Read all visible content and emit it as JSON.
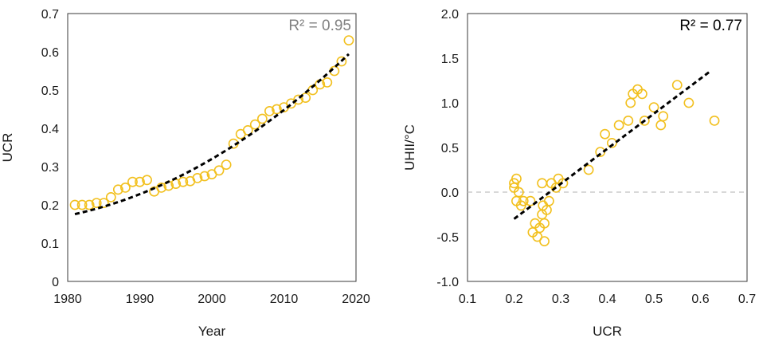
{
  "chart_data": [
    {
      "type": "scatter",
      "xlabel": "Year",
      "ylabel": "UCR",
      "xlim": [
        1980,
        2020
      ],
      "ylim": [
        0,
        0.7
      ],
      "xticks": [
        "1980",
        "1990",
        "2000",
        "2010",
        "2020"
      ],
      "yticks": [
        "0",
        "0.1",
        "0.2",
        "0.3",
        "0.4",
        "0.5",
        "0.6",
        "0.7"
      ],
      "annotation": "R² = 0.95",
      "annotation_color": "#808080",
      "marker_color": "#F2C01E",
      "trend_color": "#000000",
      "trendline": {
        "style": "dashed",
        "type": "polynomial",
        "coef": [
          0.172,
          0.0038,
          0.00018
        ],
        "x_origin": 1980,
        "x_range": [
          1981,
          2019
        ]
      },
      "series": [
        {
          "x": [
            1981,
            1982,
            1983,
            1984,
            1985,
            1986,
            1987,
            1988,
            1989,
            1990,
            1991,
            1992,
            1993,
            1994,
            1995,
            1996,
            1997,
            1998,
            1999,
            2000,
            2001,
            2002,
            2003,
            2004,
            2005,
            2006,
            2007,
            2008,
            2009,
            2010,
            2011,
            2012,
            2013,
            2014,
            2015,
            2016,
            2017,
            2018,
            2019
          ],
          "y": [
            0.2,
            0.2,
            0.2,
            0.205,
            0.205,
            0.22,
            0.24,
            0.245,
            0.26,
            0.26,
            0.265,
            0.235,
            0.245,
            0.25,
            0.255,
            0.26,
            0.262,
            0.27,
            0.275,
            0.28,
            0.29,
            0.305,
            0.36,
            0.385,
            0.395,
            0.41,
            0.425,
            0.445,
            0.45,
            0.455,
            0.465,
            0.475,
            0.48,
            0.5,
            0.515,
            0.52,
            0.55,
            0.575,
            0.63
          ]
        }
      ]
    },
    {
      "type": "scatter",
      "xlabel": "UCR",
      "ylabel": "UHII/°C",
      "xlim": [
        0.1,
        0.7
      ],
      "ylim": [
        -1.0,
        2.0
      ],
      "xticks": [
        "0.1",
        "0.2",
        "0.3",
        "0.4",
        "0.5",
        "0.6",
        "0.7"
      ],
      "yticks": [
        "-1.0",
        "-0.5",
        "0.0",
        "0.5",
        "1.0",
        "1.5",
        "2.0"
      ],
      "annotation": "R² = 0.77",
      "annotation_color": "#000000",
      "marker_color": "#F2C01E",
      "trend_color": "#000000",
      "zero_line_color": "#C0C0C0",
      "trendline": {
        "style": "dashed",
        "type": "linear",
        "start": [
          0.2,
          -0.3
        ],
        "end": [
          0.62,
          1.35
        ]
      },
      "series": [
        {
          "x": [
            0.2,
            0.2,
            0.205,
            0.205,
            0.21,
            0.215,
            0.22,
            0.235,
            0.24,
            0.245,
            0.25,
            0.255,
            0.26,
            0.26,
            0.262,
            0.265,
            0.265,
            0.27,
            0.275,
            0.28,
            0.29,
            0.295,
            0.305,
            0.36,
            0.385,
            0.395,
            0.41,
            0.425,
            0.445,
            0.45,
            0.455,
            0.465,
            0.475,
            0.48,
            0.5,
            0.515,
            0.52,
            0.55,
            0.575,
            0.63
          ],
          "y": [
            0.1,
            0.05,
            0.15,
            -0.1,
            0.0,
            -0.15,
            -0.1,
            -0.1,
            -0.45,
            -0.35,
            -0.5,
            -0.4,
            -0.25,
            0.1,
            -0.15,
            -0.55,
            -0.35,
            -0.2,
            -0.1,
            0.1,
            0.05,
            0.15,
            0.1,
            0.25,
            0.45,
            0.65,
            0.55,
            0.75,
            0.8,
            1.0,
            1.1,
            1.15,
            1.1,
            0.8,
            0.95,
            0.75,
            0.85,
            1.2,
            1.0,
            0.8
          ]
        }
      ]
    }
  ]
}
